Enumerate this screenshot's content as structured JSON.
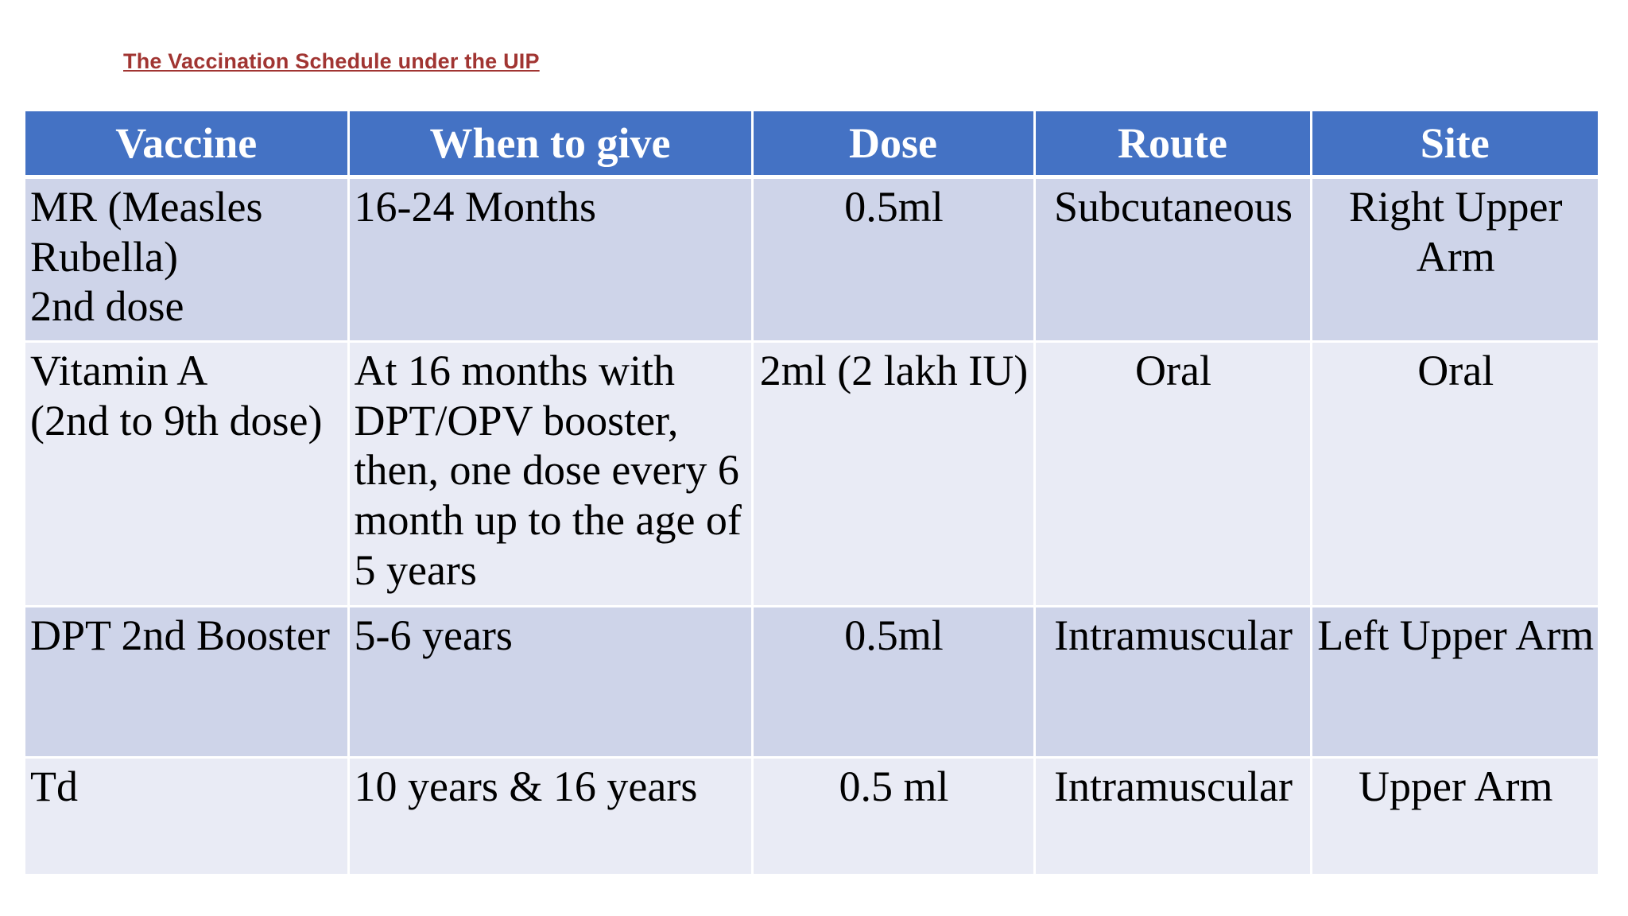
{
  "title": {
    "text": "The Vaccination Schedule under the UIP"
  },
  "colors": {
    "page_bg": "#FFFFFF",
    "title_text": "#A13532",
    "header_bg": "#4472C4",
    "header_text": "#FFFFFF",
    "row_band_dark": "#CED4E9",
    "row_band_light": "#E9EBF5",
    "body_text": "#000000",
    "grid_line": "#FFFFFF"
  },
  "table": {
    "columns": [
      {
        "label": "Vaccine"
      },
      {
        "label": "When to give"
      },
      {
        "label": "Dose"
      },
      {
        "label": "Route"
      },
      {
        "label": "Site"
      }
    ],
    "rows": [
      {
        "cells": [
          "MR (Measles\nRubella)\n2nd dose",
          "16-24 Months",
          "0.5ml",
          "Subcutaneous",
          "Right Upper\nArm"
        ]
      },
      {
        "cells": [
          "Vitamin A\n(2nd to 9th dose)",
          "At 16 months with\nDPT/OPV booster,\nthen, one dose every 6\nmonth up to the age of\n5 years",
          "2ml (2 lakh IU)",
          "Oral",
          "Oral"
        ]
      },
      {
        "cells": [
          "DPT 2nd Booster",
          "5-6 years",
          "0.5ml",
          "Intramuscular",
          "Left Upper Arm"
        ]
      },
      {
        "cells": [
          "Td",
          "10 years & 16 years",
          "0.5 ml",
          "Intramuscular",
          "Upper Arm"
        ]
      }
    ]
  }
}
